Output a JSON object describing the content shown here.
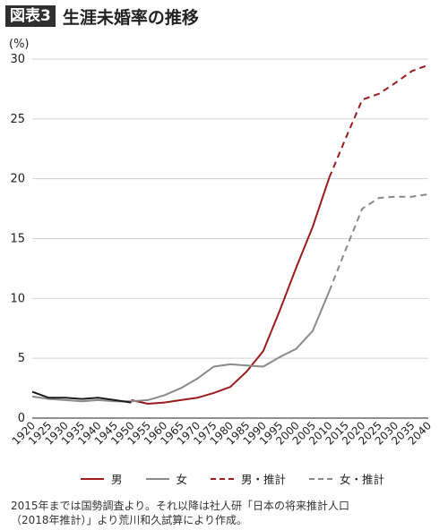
{
  "header": {
    "badge": "図表3",
    "title": "生涯未婚率の推移"
  },
  "chart_data": {
    "type": "line",
    "ylabel": "(%)",
    "ylim": [
      0,
      30
    ],
    "yticks": [
      0,
      5,
      10,
      15,
      20,
      25,
      30
    ],
    "x_categories": [
      1920,
      1925,
      1930,
      1935,
      1940,
      1945,
      1950,
      1955,
      1960,
      1965,
      1970,
      1975,
      1980,
      1985,
      1990,
      1995,
      2000,
      2005,
      2010,
      2015,
      2020,
      2025,
      2030,
      2035,
      2040
    ],
    "grid": "horizontal",
    "legend_position": "bottom",
    "series": [
      {
        "name": "男",
        "style": "solid",
        "color": "#9b1c1c",
        "points": [
          [
            1950,
            1.5
          ],
          [
            1955,
            1.2
          ],
          [
            1960,
            1.3
          ],
          [
            1965,
            1.5
          ],
          [
            1970,
            1.7
          ],
          [
            1975,
            2.1
          ],
          [
            1980,
            2.6
          ],
          [
            1985,
            3.9
          ],
          [
            1990,
            5.6
          ],
          [
            1995,
            9.0
          ],
          [
            2000,
            12.6
          ],
          [
            2005,
            16.0
          ],
          [
            2010,
            20.1
          ]
        ]
      },
      {
        "name": "女",
        "style": "solid",
        "color": "#8a8a8a",
        "points": [
          [
            1920,
            1.8
          ],
          [
            1925,
            1.6
          ],
          [
            1930,
            1.5
          ],
          [
            1935,
            1.4
          ],
          [
            1940,
            1.5
          ],
          [
            1945,
            1.4
          ],
          [
            1950,
            1.4
          ],
          [
            1955,
            1.5
          ],
          [
            1960,
            1.9
          ],
          [
            1965,
            2.5
          ],
          [
            1970,
            3.3
          ],
          [
            1975,
            4.3
          ],
          [
            1980,
            4.5
          ],
          [
            1985,
            4.4
          ],
          [
            1990,
            4.3
          ],
          [
            1995,
            5.1
          ],
          [
            2000,
            5.8
          ],
          [
            2005,
            7.3
          ],
          [
            2010,
            10.6
          ]
        ]
      },
      {
        "name": "男・推計",
        "style": "dashed",
        "color": "#9b1c1c",
        "points": [
          [
            2010,
            20.1
          ],
          [
            2015,
            23.4
          ],
          [
            2020,
            26.6
          ],
          [
            2025,
            27.1
          ],
          [
            2030,
            28.0
          ],
          [
            2035,
            29.0
          ],
          [
            2040,
            29.5
          ]
        ]
      },
      {
        "name": "女・推計",
        "style": "dashed",
        "color": "#8a8a8a",
        "points": [
          [
            2010,
            10.6
          ],
          [
            2015,
            14.1
          ],
          [
            2020,
            17.5
          ],
          [
            2025,
            18.4
          ],
          [
            2030,
            18.5
          ],
          [
            2035,
            18.5
          ],
          [
            2040,
            18.7
          ]
        ]
      },
      {
        "name": "",
        "style": "solid",
        "color": "#1a1a1a",
        "points": [
          [
            1920,
            2.2
          ],
          [
            1925,
            1.7
          ],
          [
            1930,
            1.7
          ],
          [
            1935,
            1.6
          ],
          [
            1940,
            1.7
          ],
          [
            1945,
            1.5
          ],
          [
            1950,
            1.3
          ]
        ]
      }
    ]
  },
  "legend": [
    {
      "label": "男",
      "style": "solid",
      "color": "#9b1c1c"
    },
    {
      "label": "女",
      "style": "solid",
      "color": "#8a8a8a"
    },
    {
      "label": "男・推計",
      "style": "dashed",
      "color": "#9b1c1c"
    },
    {
      "label": "女・推計",
      "style": "dashed",
      "color": "#8a8a8a"
    }
  ],
  "footnote": {
    "line1": "2015年までは国勢調査より。それ以降は社人研「日本の将来推計人口",
    "line2": "（2018年推計）」より荒川和久試算により作成。"
  }
}
